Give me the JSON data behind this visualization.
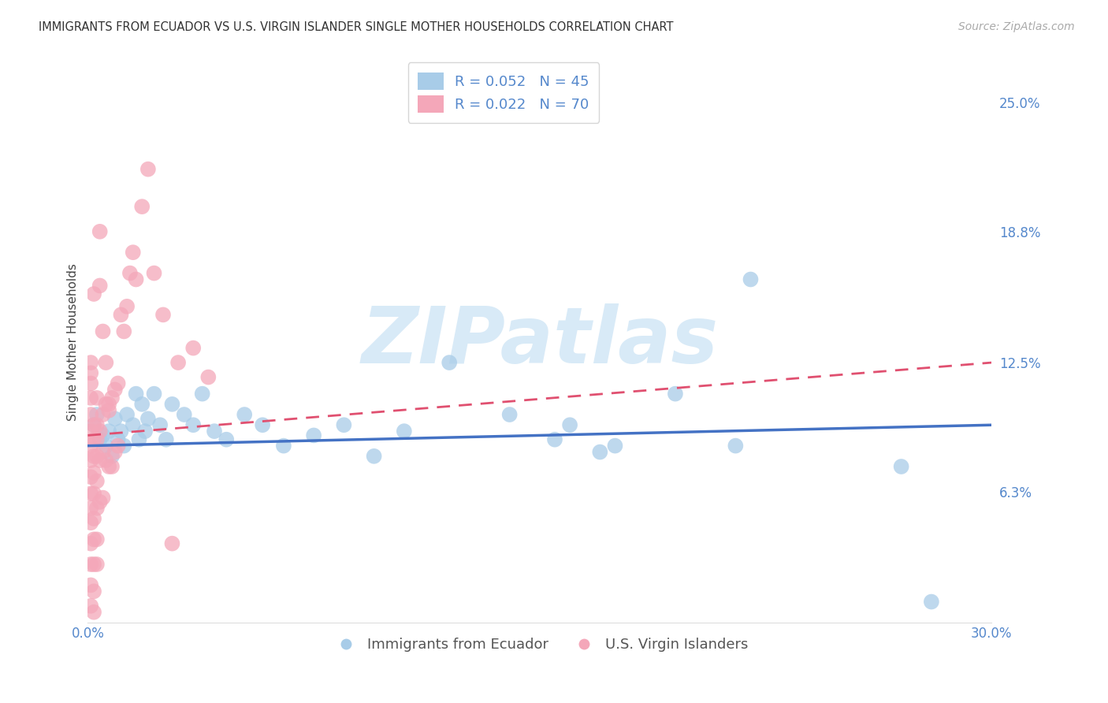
{
  "title": "IMMIGRANTS FROM ECUADOR VS U.S. VIRGIN ISLANDER SINGLE MOTHER HOUSEHOLDS CORRELATION CHART",
  "source": "Source: ZipAtlas.com",
  "ylabel": "Single Mother Households",
  "xlim": [
    0.0,
    0.3
  ],
  "ylim": [
    0.0,
    0.27
  ],
  "right_ytick_positions": [
    0.0,
    0.063,
    0.125,
    0.188,
    0.25
  ],
  "right_ytick_labels": [
    "",
    "6.3%",
    "12.5%",
    "18.8%",
    "25.0%"
  ],
  "blue_color": "#a8cce8",
  "pink_color": "#f4a7b9",
  "blue_line_color": "#4472c4",
  "pink_line_color": "#e05070",
  "axis_color": "#5588cc",
  "legend_R1": "R = 0.052",
  "legend_N1": "N = 45",
  "legend_R2": "R = 0.022",
  "legend_N2": "N = 70",
  "legend_label1": "Immigrants from Ecuador",
  "legend_label2": "U.S. Virgin Islanders",
  "blue_regression": [
    0.0,
    0.3,
    0.085,
    0.095
  ],
  "pink_regression": [
    0.0,
    0.3,
    0.09,
    0.125
  ],
  "blue_x": [
    0.002,
    0.003,
    0.004,
    0.005,
    0.006,
    0.007,
    0.008,
    0.009,
    0.01,
    0.011,
    0.012,
    0.013,
    0.015,
    0.016,
    0.017,
    0.018,
    0.019,
    0.02,
    0.022,
    0.024,
    0.026,
    0.028,
    0.032,
    0.035,
    0.038,
    0.042,
    0.046,
    0.052,
    0.058,
    0.065,
    0.075,
    0.085,
    0.095,
    0.105,
    0.12,
    0.14,
    0.155,
    0.17,
    0.195,
    0.215,
    0.16,
    0.175,
    0.22,
    0.27,
    0.28
  ],
  "blue_y": [
    0.095,
    0.1,
    0.088,
    0.09,
    0.085,
    0.092,
    0.08,
    0.098,
    0.088,
    0.092,
    0.085,
    0.1,
    0.095,
    0.11,
    0.088,
    0.105,
    0.092,
    0.098,
    0.11,
    0.095,
    0.088,
    0.105,
    0.1,
    0.095,
    0.11,
    0.092,
    0.088,
    0.1,
    0.095,
    0.085,
    0.09,
    0.095,
    0.08,
    0.092,
    0.125,
    0.1,
    0.088,
    0.082,
    0.11,
    0.085,
    0.095,
    0.085,
    0.165,
    0.075,
    0.01
  ],
  "pink_x": [
    0.001,
    0.001,
    0.001,
    0.001,
    0.001,
    0.001,
    0.001,
    0.001,
    0.001,
    0.001,
    0.001,
    0.001,
    0.001,
    0.001,
    0.001,
    0.001,
    0.002,
    0.002,
    0.002,
    0.002,
    0.002,
    0.002,
    0.002,
    0.002,
    0.002,
    0.002,
    0.003,
    0.003,
    0.003,
    0.003,
    0.003,
    0.003,
    0.003,
    0.004,
    0.004,
    0.004,
    0.005,
    0.005,
    0.005,
    0.006,
    0.006,
    0.007,
    0.007,
    0.008,
    0.008,
    0.009,
    0.009,
    0.01,
    0.01,
    0.011,
    0.012,
    0.013,
    0.014,
    0.015,
    0.016,
    0.018,
    0.02,
    0.022,
    0.025,
    0.028,
    0.03,
    0.035,
    0.04,
    0.002,
    0.003,
    0.004,
    0.004,
    0.005,
    0.006,
    0.007
  ],
  "pink_y": [
    0.092,
    0.085,
    0.078,
    0.07,
    0.062,
    0.055,
    0.048,
    0.038,
    0.028,
    0.018,
    0.008,
    0.1,
    0.108,
    0.115,
    0.12,
    0.125,
    0.095,
    0.088,
    0.08,
    0.072,
    0.062,
    0.05,
    0.04,
    0.028,
    0.015,
    0.005,
    0.095,
    0.088,
    0.08,
    0.068,
    0.055,
    0.04,
    0.028,
    0.092,
    0.078,
    0.058,
    0.1,
    0.082,
    0.06,
    0.105,
    0.078,
    0.102,
    0.075,
    0.108,
    0.075,
    0.112,
    0.082,
    0.115,
    0.085,
    0.148,
    0.14,
    0.152,
    0.168,
    0.178,
    0.165,
    0.2,
    0.218,
    0.168,
    0.148,
    0.038,
    0.125,
    0.132,
    0.118,
    0.158,
    0.108,
    0.188,
    0.162,
    0.14,
    0.125,
    0.105
  ],
  "watermark": "ZIPatlas",
  "watermark_color": "#d8eaf7",
  "grid_color": "#cccccc",
  "background_color": "#ffffff"
}
